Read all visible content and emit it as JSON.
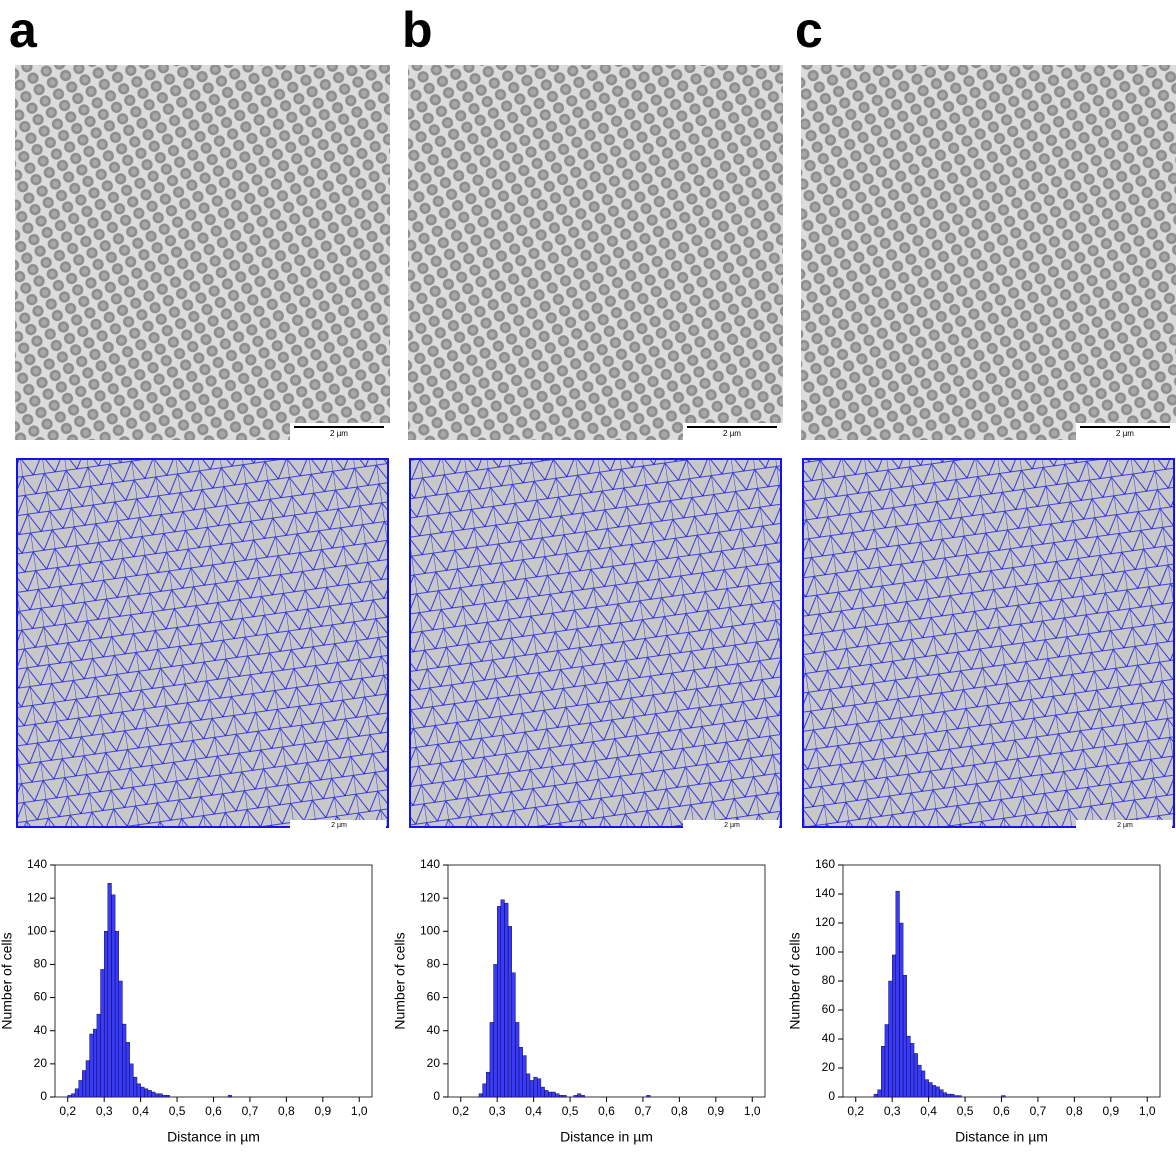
{
  "panels": [
    {
      "label": "a",
      "scale_bar": "2 µm",
      "mesh_scale_bar": "2 µm"
    },
    {
      "label": "b",
      "scale_bar": "2 µm",
      "mesh_scale_bar": "2 µm"
    },
    {
      "label": "c",
      "scale_bar": "2 µm",
      "mesh_scale_bar": "2 µm"
    }
  ],
  "chart_data": [
    {
      "type": "histogram",
      "color": "#3a3aff",
      "xlabel": "Distance in µm",
      "ylabel": "Number of cells",
      "bins": [
        0.2,
        0.21,
        0.22,
        0.23,
        0.24,
        0.25,
        0.26,
        0.27,
        0.28,
        0.29,
        0.3,
        0.31,
        0.32,
        0.33,
        0.34,
        0.35,
        0.36,
        0.37,
        0.38,
        0.39,
        0.4,
        0.41,
        0.42,
        0.43,
        0.44,
        0.45,
        0.46,
        0.47,
        0.48,
        0.49,
        0.5,
        0.51,
        0.52,
        0.53,
        0.54,
        0.55,
        0.56,
        0.57,
        0.58,
        0.59,
        0.6,
        0.61,
        0.62,
        0.63,
        0.64,
        0.65,
        0.66,
        0.67,
        0.68,
        0.69,
        0.7,
        0.71,
        0.72,
        0.73
      ],
      "values": [
        1,
        2,
        5,
        10,
        16,
        22,
        38,
        41,
        50,
        77,
        100,
        129,
        122,
        100,
        70,
        44,
        33,
        20,
        12,
        8,
        6,
        5,
        4,
        3,
        2,
        2,
        1,
        1,
        0,
        0,
        0,
        0,
        0,
        0,
        0,
        0,
        0,
        0,
        0,
        0,
        0,
        0,
        0,
        0,
        1,
        0,
        0,
        0,
        0,
        0,
        0,
        0,
        0
      ],
      "xlim": [
        0.165,
        1.035
      ],
      "ylim": [
        0,
        140
      ],
      "yticks": [
        0,
        20,
        40,
        60,
        80,
        100,
        120,
        140
      ],
      "xticks": [
        {
          "value": 0.2,
          "label": "0,2"
        },
        {
          "value": 0.3,
          "label": "0,3"
        },
        {
          "value": 0.4,
          "label": "0,4"
        },
        {
          "value": 0.5,
          "label": "0,5"
        },
        {
          "value": 0.6,
          "label": "0,6"
        },
        {
          "value": 0.7,
          "label": "0,7"
        },
        {
          "value": 0.8,
          "label": "0,8"
        },
        {
          "value": 0.9,
          "label": "0,9"
        },
        {
          "value": 1.0,
          "label": "1,0"
        }
      ]
    },
    {
      "type": "histogram",
      "color": "#3a3aff",
      "xlabel": "Distance in µm",
      "ylabel": "Number of cells",
      "bins": [
        0.2,
        0.21,
        0.22,
        0.23,
        0.24,
        0.25,
        0.26,
        0.27,
        0.28,
        0.29,
        0.3,
        0.31,
        0.32,
        0.33,
        0.34,
        0.35,
        0.36,
        0.37,
        0.38,
        0.39,
        0.4,
        0.41,
        0.42,
        0.43,
        0.44,
        0.45,
        0.46,
        0.47,
        0.48,
        0.49,
        0.5,
        0.51,
        0.52,
        0.53,
        0.54,
        0.55,
        0.56,
        0.57,
        0.58,
        0.59,
        0.6,
        0.61,
        0.62,
        0.63,
        0.64,
        0.65,
        0.66,
        0.67,
        0.68,
        0.69,
        0.7,
        0.71,
        0.72,
        0.73
      ],
      "values": [
        0,
        0,
        0,
        0,
        0,
        2,
        8,
        15,
        45,
        80,
        115,
        119,
        117,
        103,
        75,
        45,
        30,
        25,
        14,
        10,
        12,
        11,
        6,
        4,
        3,
        3,
        2,
        1,
        1,
        0,
        0,
        1,
        2,
        1,
        0,
        0,
        0,
        0,
        0,
        0,
        0,
        0,
        0,
        0,
        0,
        0,
        0,
        0,
        0,
        0,
        0,
        1,
        0
      ],
      "xlim": [
        0.165,
        1.035
      ],
      "ylim": [
        0,
        140
      ],
      "yticks": [
        0,
        20,
        40,
        60,
        80,
        100,
        120,
        140
      ],
      "xticks": [
        {
          "value": 0.2,
          "label": "0,2"
        },
        {
          "value": 0.3,
          "label": "0,3"
        },
        {
          "value": 0.4,
          "label": "0,4"
        },
        {
          "value": 0.5,
          "label": "0,5"
        },
        {
          "value": 0.6,
          "label": "0,6"
        },
        {
          "value": 0.7,
          "label": "0,7"
        },
        {
          "value": 0.8,
          "label": "0,8"
        },
        {
          "value": 0.9,
          "label": "0,9"
        },
        {
          "value": 1.0,
          "label": "1,0"
        }
      ]
    },
    {
      "type": "histogram",
      "color": "#3a3aff",
      "xlabel": "Distance in µm",
      "ylabel": "Number of cells",
      "bins": [
        0.2,
        0.21,
        0.22,
        0.23,
        0.24,
        0.25,
        0.26,
        0.27,
        0.28,
        0.29,
        0.3,
        0.31,
        0.32,
        0.33,
        0.34,
        0.35,
        0.36,
        0.37,
        0.38,
        0.39,
        0.4,
        0.41,
        0.42,
        0.43,
        0.44,
        0.45,
        0.46,
        0.47,
        0.48,
        0.49,
        0.5,
        0.51,
        0.52,
        0.53,
        0.54,
        0.55,
        0.56,
        0.57,
        0.58,
        0.59,
        0.6,
        0.61,
        0.62,
        0.63,
        0.64,
        0.65,
        0.66,
        0.67,
        0.68,
        0.69,
        0.7,
        0.71,
        0.72,
        0.73
      ],
      "values": [
        0,
        0,
        0,
        0,
        0,
        2,
        5,
        35,
        50,
        80,
        98,
        142,
        120,
        84,
        42,
        37,
        30,
        22,
        18,
        12,
        10,
        8,
        7,
        5,
        3,
        2,
        2,
        1,
        1,
        0,
        0,
        0,
        0,
        0,
        0,
        0,
        0,
        0,
        0,
        0,
        1,
        0,
        0,
        0,
        0,
        0,
        0,
        0,
        0,
        0,
        0,
        0,
        0
      ],
      "xlim": [
        0.165,
        1.035
      ],
      "ylim": [
        0,
        160
      ],
      "yticks": [
        0,
        20,
        40,
        60,
        80,
        100,
        120,
        140,
        160
      ],
      "xticks": [
        {
          "value": 0.2,
          "label": "0,2"
        },
        {
          "value": 0.3,
          "label": "0,3"
        },
        {
          "value": 0.4,
          "label": "0,4"
        },
        {
          "value": 0.5,
          "label": "0,5"
        },
        {
          "value": 0.6,
          "label": "0,6"
        },
        {
          "value": 0.7,
          "label": "0,7"
        },
        {
          "value": 0.8,
          "label": "0,8"
        },
        {
          "value": 0.9,
          "label": "0,9"
        },
        {
          "value": 1.0,
          "label": "1,0"
        }
      ]
    }
  ]
}
